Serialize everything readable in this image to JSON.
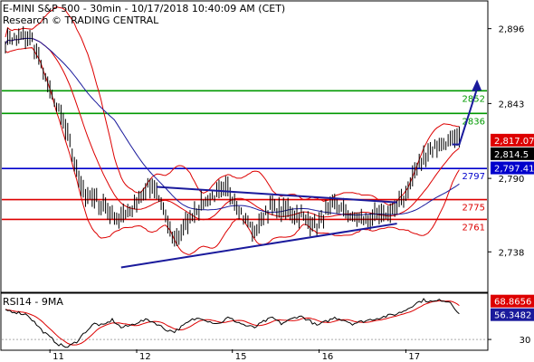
{
  "header": {
    "line1": "E-MINI S&P 500 - 30min - 10/17/2018 10:40:09 AM (CET)",
    "line2": "Research © TRADING CENTRAL"
  },
  "rsi_panel": {
    "label": "RSI14 - 9MA"
  },
  "chart_data": [
    {
      "type": "candlestick",
      "title": "E-MINI S&P 500 - 30min",
      "ylim": [
        2710,
        2915
      ],
      "y_ticks": [
        2896,
        2843,
        2790,
        2738
      ],
      "y_tick_labels": [
        "2,896",
        "2,843",
        "2,790",
        "2,738"
      ],
      "x_tick_labels": [
        "11",
        "12",
        "15",
        "16",
        "17"
      ],
      "grid": false,
      "levels": [
        {
          "label": "2852",
          "value": 2852,
          "color": "#009900"
        },
        {
          "label": "2836",
          "value": 2836,
          "color": "#009900"
        },
        {
          "label": "2797",
          "value": 2797,
          "color": "#0000cc"
        },
        {
          "label": "2775",
          "value": 2775,
          "color": "#dd0000"
        },
        {
          "label": "2761",
          "value": 2761,
          "color": "#dd0000"
        }
      ],
      "price_badges": [
        {
          "label": "2,817.07",
          "value": 2817.07,
          "color": "#dd0000"
        },
        {
          "label": "2,814.5",
          "value": 2814.5,
          "color": "#000000"
        },
        {
          "label": "2,797.41",
          "value": 2797.41,
          "color": "#0000cc"
        }
      ],
      "price_path": [
        [
          0,
          2888
        ],
        [
          4,
          2889
        ],
        [
          8,
          2890
        ],
        [
          12,
          2887
        ],
        [
          16,
          2870
        ],
        [
          20,
          2852
        ],
        [
          24,
          2838
        ],
        [
          28,
          2820
        ],
        [
          32,
          2795
        ],
        [
          36,
          2778
        ],
        [
          40,
          2775
        ],
        [
          44,
          2772
        ],
        [
          48,
          2765
        ],
        [
          52,
          2762
        ],
        [
          56,
          2768
        ],
        [
          60,
          2776
        ],
        [
          64,
          2785
        ],
        [
          68,
          2780
        ],
        [
          72,
          2762
        ],
        [
          76,
          2748
        ],
        [
          80,
          2755
        ],
        [
          84,
          2765
        ],
        [
          88,
          2772
        ],
        [
          92,
          2776
        ],
        [
          96,
          2780
        ],
        [
          100,
          2782
        ],
        [
          104,
          2772
        ],
        [
          108,
          2760
        ],
        [
          112,
          2752
        ],
        [
          116,
          2765
        ],
        [
          120,
          2770
        ],
        [
          124,
          2766
        ],
        [
          128,
          2768
        ],
        [
          132,
          2764
        ],
        [
          136,
          2760
        ],
        [
          140,
          2756
        ],
        [
          144,
          2766
        ],
        [
          148,
          2772
        ],
        [
          152,
          2768
        ],
        [
          156,
          2762
        ],
        [
          160,
          2760
        ],
        [
          164,
          2762
        ],
        [
          168,
          2764
        ],
        [
          172,
          2766
        ],
        [
          176,
          2770
        ],
        [
          180,
          2780
        ],
        [
          184,
          2795
        ],
        [
          188,
          2806
        ],
        [
          192,
          2811
        ],
        [
          196,
          2814
        ],
        [
          200,
          2816
        ],
        [
          204,
          2817
        ]
      ],
      "n_bars": 205,
      "triangle": {
        "upper": [
          [
            68,
            2784
          ],
          [
            176,
            2773
          ]
        ],
        "lower": [
          [
            52,
            2727
          ],
          [
            176,
            2758
          ]
        ],
        "color": "#1a1a9c"
      },
      "arrow": {
        "from": [
          204,
          2814
        ],
        "to": [
          212,
          2860
        ],
        "color": "#1a1a9c"
      }
    },
    {
      "type": "line",
      "title": "RSI14 - 9MA",
      "ylim": [
        20,
        75
      ],
      "y_ticks": [
        30
      ],
      "y_tick_labels": [
        "30"
      ],
      "badges": [
        {
          "label": "68.8656",
          "value": 68.8656,
          "color": "#dd0000"
        },
        {
          "label": "56.3482",
          "value": 56.3482,
          "color": "#1a1a9c"
        }
      ],
      "level_line": 30,
      "rsi_path": [
        [
          0,
          60
        ],
        [
          10,
          55
        ],
        [
          16,
          40
        ],
        [
          20,
          32
        ],
        [
          24,
          25
        ],
        [
          28,
          22
        ],
        [
          32,
          28
        ],
        [
          36,
          38
        ],
        [
          40,
          46
        ],
        [
          44,
          44
        ],
        [
          48,
          50
        ],
        [
          52,
          42
        ],
        [
          56,
          44
        ],
        [
          60,
          48
        ],
        [
          64,
          50
        ],
        [
          68,
          46
        ],
        [
          72,
          40
        ],
        [
          76,
          38
        ],
        [
          80,
          44
        ],
        [
          84,
          50
        ],
        [
          88,
          52
        ],
        [
          92,
          48
        ],
        [
          96,
          46
        ],
        [
          100,
          52
        ],
        [
          104,
          48
        ],
        [
          108,
          44
        ],
        [
          112,
          42
        ],
        [
          116,
          48
        ],
        [
          120,
          52
        ],
        [
          124,
          46
        ],
        [
          128,
          50
        ],
        [
          132,
          54
        ],
        [
          136,
          50
        ],
        [
          140,
          44
        ],
        [
          144,
          48
        ],
        [
          148,
          52
        ],
        [
          152,
          50
        ],
        [
          156,
          46
        ],
        [
          160,
          48
        ],
        [
          164,
          50
        ],
        [
          168,
          52
        ],
        [
          172,
          54
        ],
        [
          176,
          56
        ],
        [
          180,
          60
        ],
        [
          184,
          66
        ],
        [
          188,
          70
        ],
        [
          192,
          68
        ],
        [
          196,
          70
        ],
        [
          200,
          68
        ],
        [
          204,
          56
        ]
      ],
      "ma_shift": 4
    }
  ]
}
